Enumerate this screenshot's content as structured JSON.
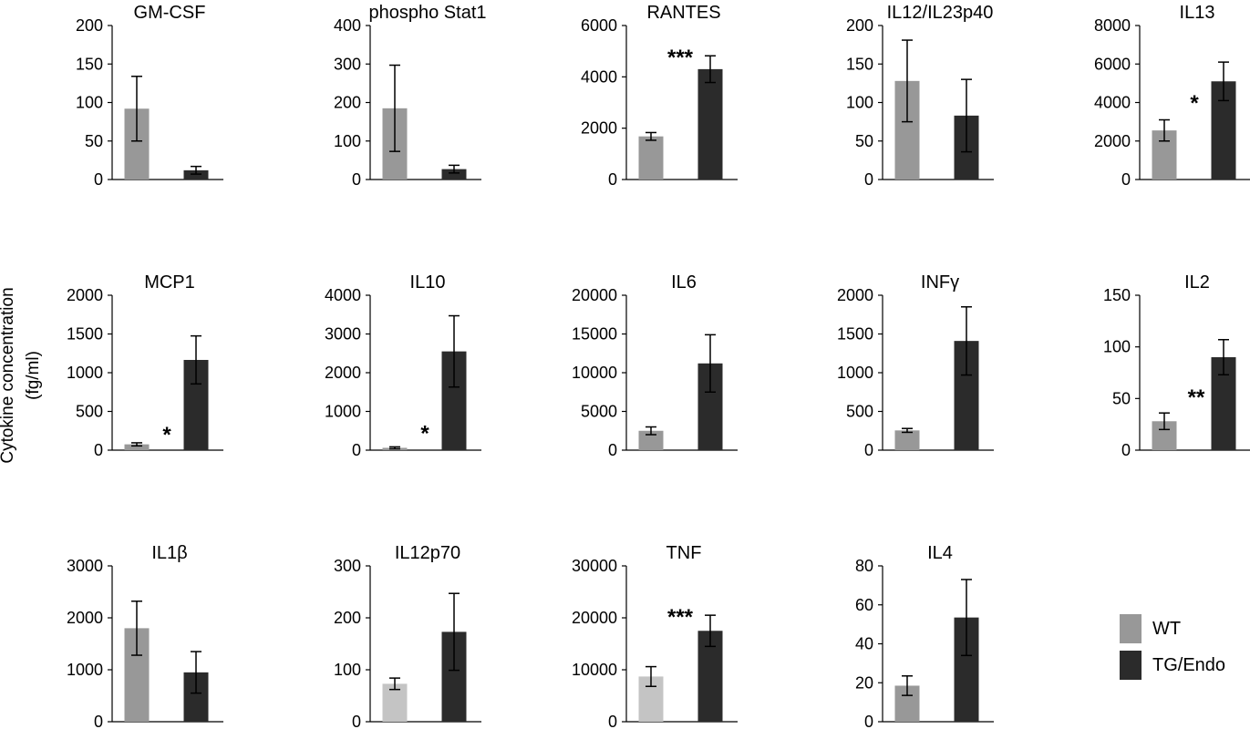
{
  "chart_data": [
    {
      "type": "bar",
      "title": "GM-CSF",
      "categories": [
        "WT",
        "TG/Endo"
      ],
      "values": [
        92,
        12
      ],
      "errors": [
        42,
        5
      ],
      "yticks": [
        0,
        50,
        100,
        150,
        200
      ],
      "ylim": [
        0,
        200
      ],
      "significance": "",
      "colors": [
        "#989898",
        "#2b2b2b"
      ]
    },
    {
      "type": "bar",
      "title": "phospho Stat1",
      "categories": [
        "WT",
        "TG/Endo"
      ],
      "values": [
        185,
        27
      ],
      "errors": [
        112,
        10
      ],
      "yticks": [
        0,
        100,
        200,
        300,
        400
      ],
      "ylim": [
        0,
        400
      ],
      "significance": "",
      "colors": [
        "#989898",
        "#2b2b2b"
      ]
    },
    {
      "type": "bar",
      "title": "RANTES",
      "categories": [
        "WT",
        "TG/Endo"
      ],
      "values": [
        1680,
        4300
      ],
      "errors": [
        150,
        520
      ],
      "yticks": [
        0,
        2000,
        4000,
        6000
      ],
      "ylim": [
        0,
        6000
      ],
      "significance": "***",
      "colors": [
        "#989898",
        "#2b2b2b"
      ]
    },
    {
      "type": "bar",
      "title": "IL12/IL23p40",
      "categories": [
        "WT",
        "TG/Endo"
      ],
      "values": [
        128,
        83
      ],
      "errors": [
        53,
        47
      ],
      "yticks": [
        0,
        50,
        100,
        150,
        200
      ],
      "ylim": [
        0,
        200
      ],
      "significance": "",
      "colors": [
        "#989898",
        "#2b2b2b"
      ]
    },
    {
      "type": "bar",
      "title": "IL13",
      "categories": [
        "WT",
        "TG/Endo"
      ],
      "values": [
        2550,
        5100
      ],
      "errors": [
        550,
        1000
      ],
      "yticks": [
        0,
        2000,
        4000,
        6000,
        8000
      ],
      "ylim": [
        0,
        8000
      ],
      "significance": "*",
      "colors": [
        "#989898",
        "#2b2b2b"
      ]
    },
    {
      "type": "bar",
      "title": "MCP1",
      "categories": [
        "WT",
        "TG/Endo"
      ],
      "values": [
        75,
        1165
      ],
      "errors": [
        20,
        310
      ],
      "yticks": [
        0,
        500,
        1000,
        1500,
        2000
      ],
      "ylim": [
        0,
        2000
      ],
      "significance": "*",
      "colors": [
        "#989898",
        "#2b2b2b"
      ]
    },
    {
      "type": "bar",
      "title": "IL10",
      "categories": [
        "WT",
        "TG/Endo"
      ],
      "values": [
        60,
        2550
      ],
      "errors": [
        25,
        920
      ],
      "yticks": [
        0,
        1000,
        2000,
        3000,
        4000
      ],
      "ylim": [
        0,
        4000
      ],
      "significance": "*",
      "colors": [
        "#989898",
        "#2b2b2b"
      ]
    },
    {
      "type": "bar",
      "title": "IL6",
      "categories": [
        "WT",
        "TG/Endo"
      ],
      "values": [
        2500,
        11200
      ],
      "errors": [
        500,
        3700
      ],
      "yticks": [
        0,
        5000,
        10000,
        15000,
        20000
      ],
      "ylim": [
        0,
        20000
      ],
      "significance": "",
      "colors": [
        "#989898",
        "#2b2b2b"
      ]
    },
    {
      "type": "bar",
      "title": "INFγ",
      "categories": [
        "WT",
        "TG/Endo"
      ],
      "values": [
        255,
        1410
      ],
      "errors": [
        25,
        440
      ],
      "yticks": [
        0,
        500,
        1000,
        1500,
        2000
      ],
      "ylim": [
        0,
        2000
      ],
      "significance": "",
      "colors": [
        "#989898",
        "#2b2b2b"
      ]
    },
    {
      "type": "bar",
      "title": "IL2",
      "categories": [
        "WT",
        "TG/Endo"
      ],
      "values": [
        28,
        90
      ],
      "errors": [
        8,
        17
      ],
      "yticks": [
        0,
        50,
        100,
        150
      ],
      "ylim": [
        0,
        150
      ],
      "significance": "**",
      "colors": [
        "#989898",
        "#2b2b2b"
      ]
    },
    {
      "type": "bar",
      "title": "IL1β",
      "categories": [
        "WT",
        "TG/Endo"
      ],
      "values": [
        1800,
        950
      ],
      "errors": [
        520,
        400
      ],
      "yticks": [
        0,
        1000,
        2000,
        3000
      ],
      "ylim": [
        0,
        3000
      ],
      "significance": "",
      "colors": [
        "#989898",
        "#2b2b2b"
      ]
    },
    {
      "type": "bar",
      "title": "IL12p70",
      "categories": [
        "WT",
        "TG/Endo"
      ],
      "values": [
        73,
        173
      ],
      "errors": [
        11,
        74
      ],
      "yticks": [
        0,
        100,
        200,
        300
      ],
      "ylim": [
        0,
        300
      ],
      "significance": "",
      "colors": [
        "#c4c4c4",
        "#2b2b2b"
      ]
    },
    {
      "type": "bar",
      "title": "TNF",
      "categories": [
        "WT",
        "TG/Endo"
      ],
      "values": [
        8700,
        17500
      ],
      "errors": [
        1900,
        3000
      ],
      "yticks": [
        0,
        10000,
        20000,
        30000
      ],
      "ylim": [
        0,
        30000
      ],
      "significance": "***",
      "colors": [
        "#c4c4c4",
        "#2b2b2b"
      ]
    },
    {
      "type": "bar",
      "title": "IL4",
      "categories": [
        "WT",
        "TG/Endo"
      ],
      "values": [
        18.5,
        53.5
      ],
      "errors": [
        5,
        19.5
      ],
      "yticks": [
        0,
        20,
        40,
        60,
        80
      ],
      "ylim": [
        0,
        80
      ],
      "significance": "",
      "colors": [
        "#989898",
        "#2b2b2b"
      ]
    }
  ],
  "ylabel_line1": "Cytokine concentration",
  "ylabel_line2": "(fg/ml)",
  "legend": [
    {
      "label": "WT",
      "color": "#989898"
    },
    {
      "label": "TG/Endo",
      "color": "#2b2b2b"
    }
  ]
}
